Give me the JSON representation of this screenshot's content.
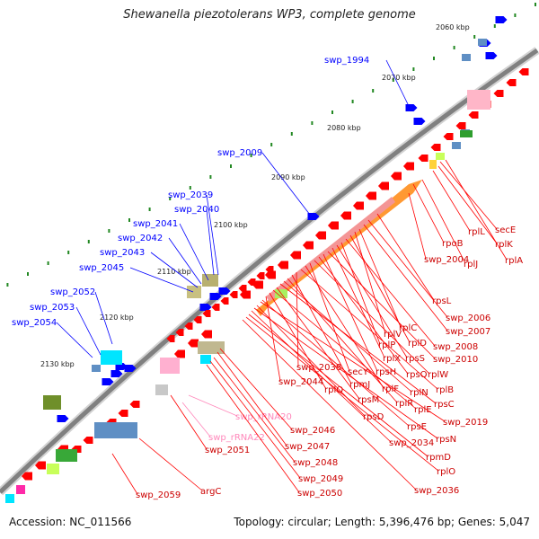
{
  "title": "Shewanella piezotolerans WP3, complete genome",
  "footer": {
    "accession": "Accession: NC_011566",
    "info": "Topology: circular; Length: 5,396,476 bp; Genes: 5,047"
  },
  "colors": {
    "forward_feature": "#0000ff",
    "reverse_feature": "#ff0000",
    "reverse_label": "#cc0000",
    "rrna_label": "#ff88bb",
    "backbone": "#808080",
    "tick": "#228822"
  },
  "ruler": [
    "2060 kbp",
    "2070 kbp",
    "2080 kbp",
    "2090 kbp",
    "2100 kbp",
    "2110 kbp",
    "2120 kbp",
    "2130 kbp"
  ],
  "forward_labels": [
    "swp_1994",
    "swp_2009",
    "swp_2039",
    "swp_2040",
    "swp_2041",
    "swp_2042",
    "swp_2043",
    "swp_2045",
    "swp_2052",
    "swp_2053",
    "swp_2054"
  ],
  "reverse_labels": [
    "secE",
    "rplL",
    "rplK",
    "rpoB",
    "rplA",
    "rplJ",
    "swp_2004",
    "rpsL",
    "swp_2006",
    "swp_2007",
    "rplC",
    "rplV",
    "rplD",
    "swp_2008",
    "rplP",
    "rpsS",
    "rplX",
    "swp_2010",
    "rpsH",
    "rpsQ",
    "rplW",
    "secY",
    "rplF",
    "rplB",
    "swp_2038",
    "rpmJ",
    "rplR",
    "rplN",
    "rpsC",
    "rpsM",
    "rplE",
    "rplQ",
    "swp_2044",
    "rpsE",
    "swp_2019",
    "rpsD",
    "rpsN",
    "swp_2034",
    "rpmD",
    "rplO",
    "swp_2036",
    "swp_rRNA20",
    "swp_2046",
    "swp_2047",
    "swp_rRNA22",
    "swp_2048",
    "swp_2051",
    "swp_2049",
    "swp_2050",
    "argC",
    "swp_2059"
  ]
}
